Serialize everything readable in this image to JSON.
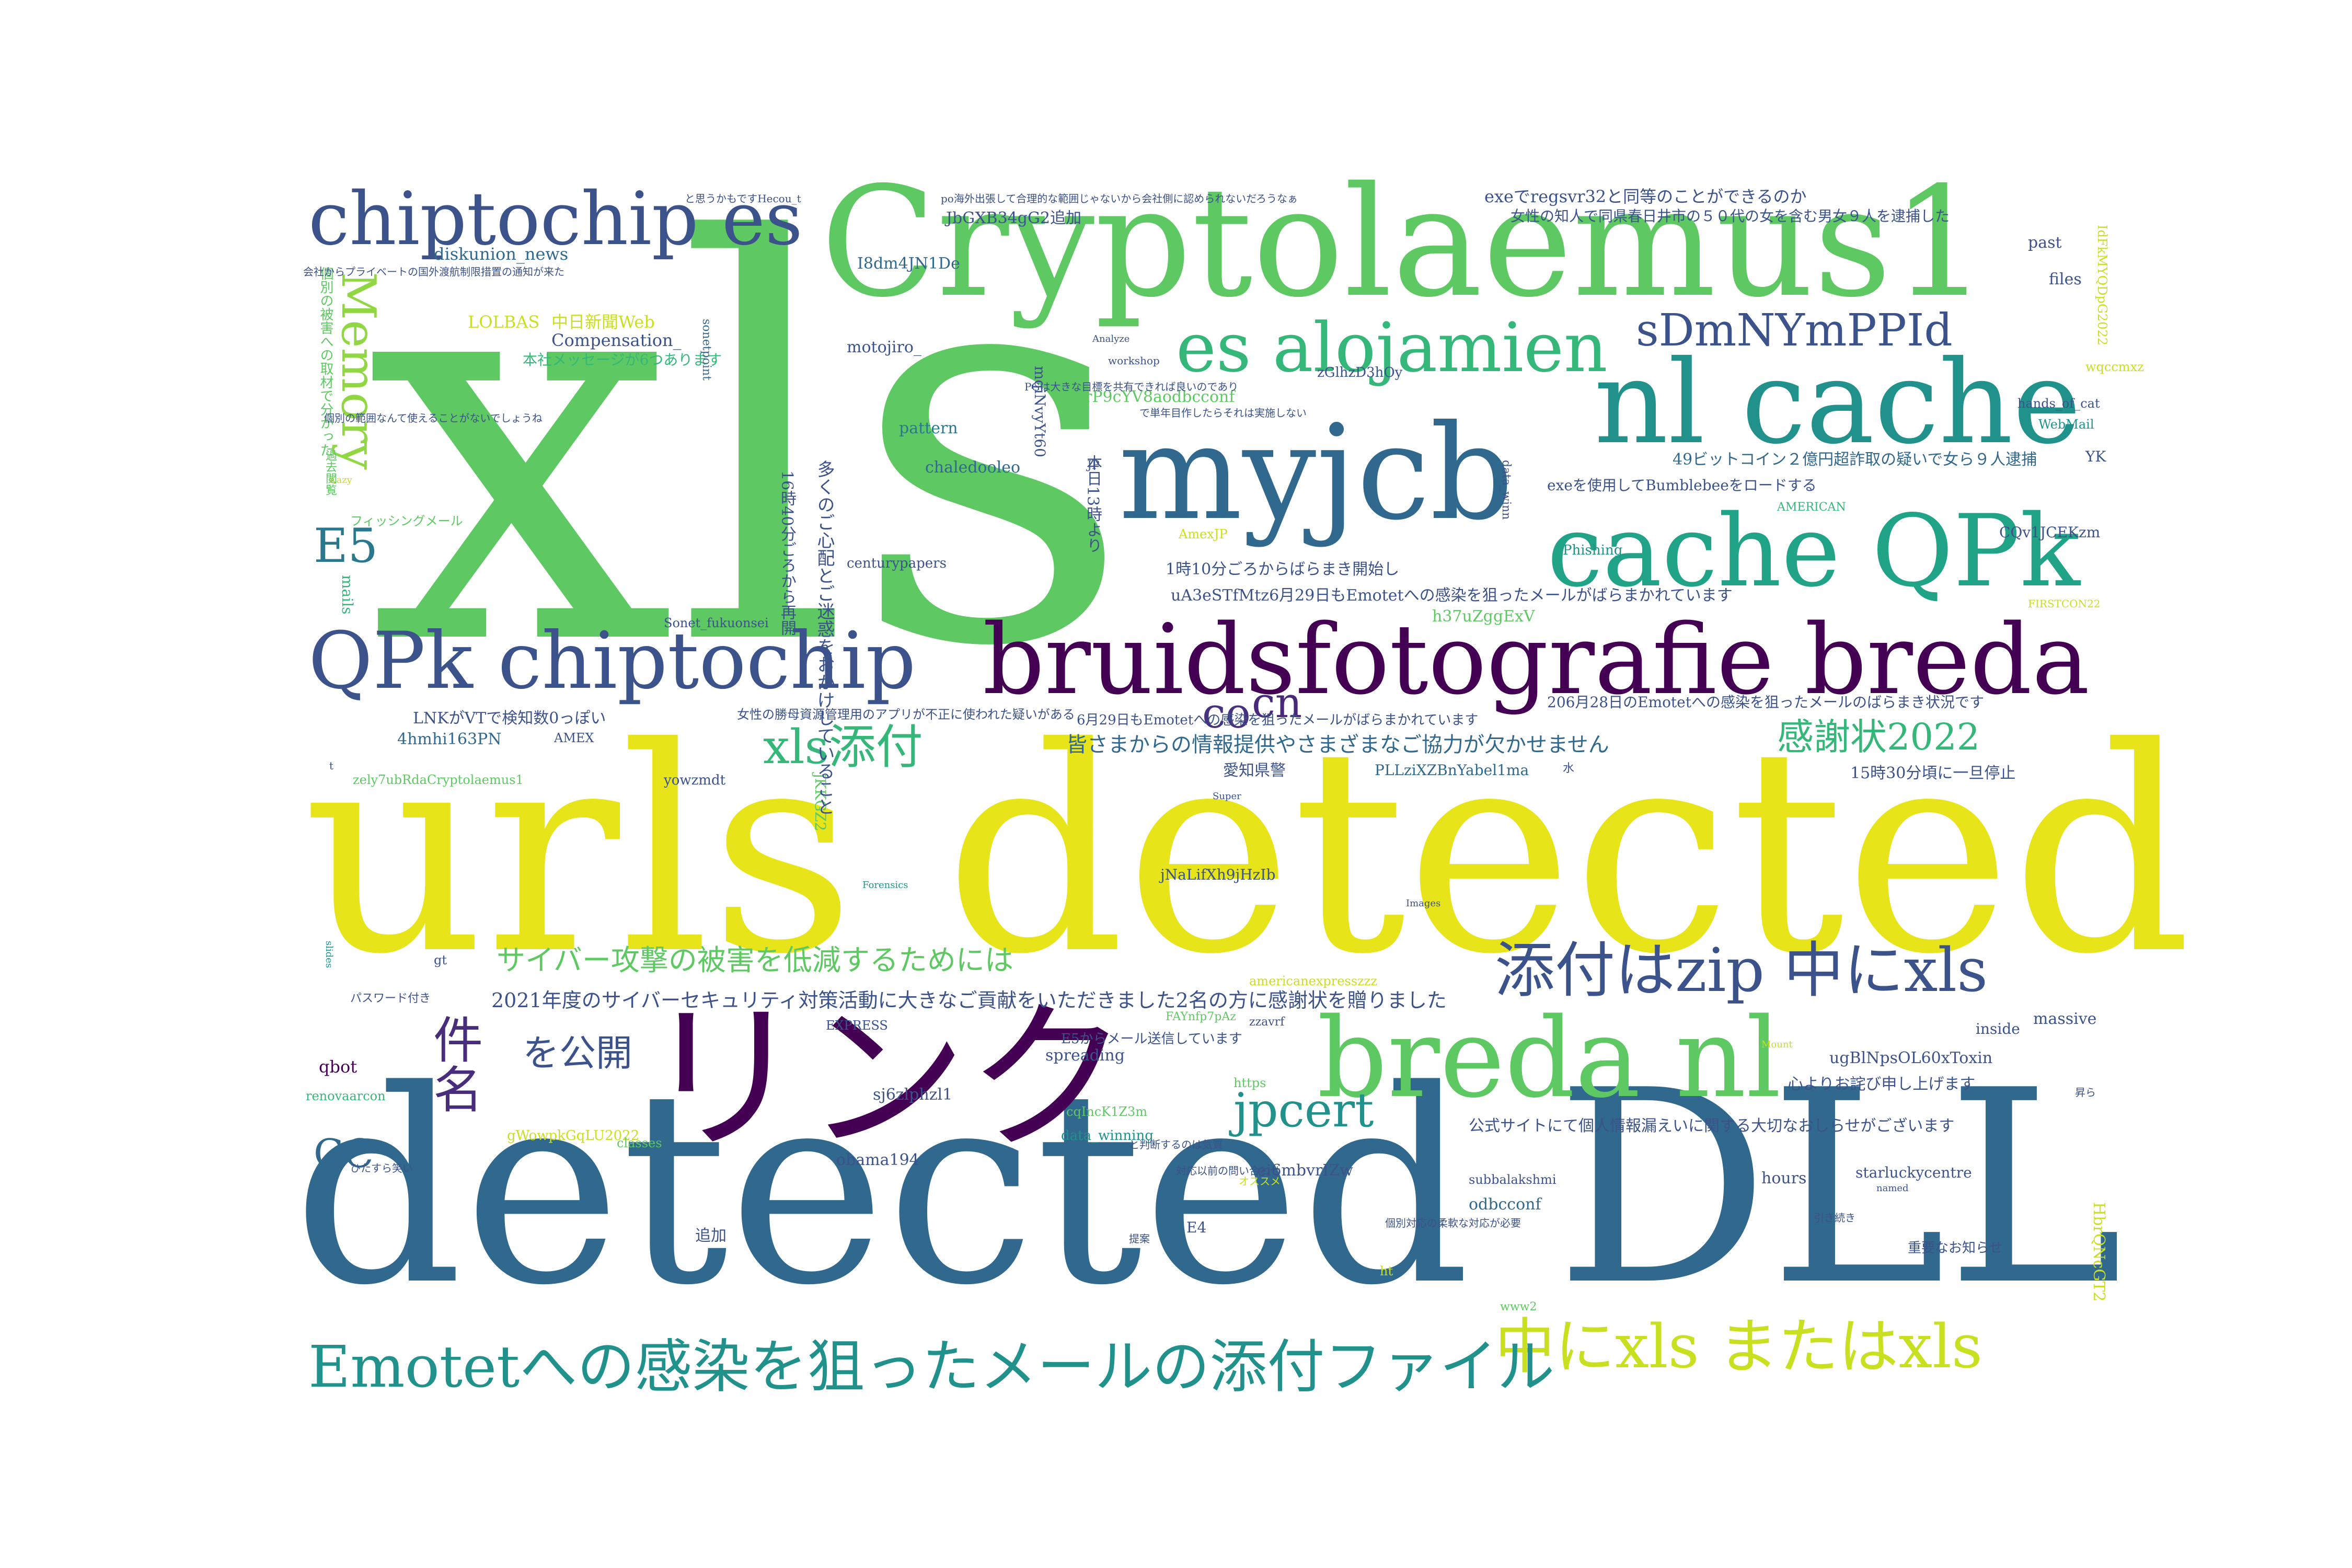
{
  "words": [
    {
      "text": "xls",
      "color": "#5ec962"
    },
    {
      "text": "urls detected",
      "color": "#e7e419"
    },
    {
      "text": "detected DLL",
      "color": "#31688e"
    },
    {
      "text": "Cryptolaemus1",
      "color": "#5ec962"
    },
    {
      "text": "bruidsfotografie breda",
      "color": "#440154"
    },
    {
      "text": "myjcb",
      "color": "#31688e"
    },
    {
      "text": "nl cache",
      "color": "#21918c"
    },
    {
      "text": "cache QPk",
      "color": "#20a386"
    },
    {
      "text": "QPk chiptochip",
      "color": "#3b528b"
    },
    {
      "text": "chiptochip es",
      "color": "#3b528b"
    },
    {
      "text": "es alojamien",
      "color": "#35b779"
    },
    {
      "text": "sDmNYmPPId",
      "color": "#3b528b"
    },
    {
      "text": "リンク",
      "color": "#440154"
    },
    {
      "text": "breda nl",
      "color": "#5ec962"
    },
    {
      "text": "添付はzip 中にxls",
      "color": "#3b528b"
    },
    {
      "text": "中にxls またはxls",
      "color": "#c8e020"
    },
    {
      "text": "Emotetへの感染を狙ったメールの添付ファイル",
      "color": "#21918c"
    },
    {
      "text": "Memory",
      "color": "#90d743"
    },
    {
      "text": "E5",
      "color": "#2a788e"
    },
    {
      "text": "co",
      "color": "#46327e"
    },
    {
      "text": "cn",
      "color": "#482878"
    },
    {
      "text": "xls添付",
      "color": "#35b779"
    },
    {
      "text": "感謝状2022",
      "color": "#35b779"
    },
    {
      "text": "jpcert",
      "color": "#21918c"
    },
    {
      "text": "件名",
      "color": "#472d7b"
    },
    {
      "text": "を公開",
      "color": "#3b528b"
    },
    {
      "text": "CC",
      "color": "#31688e"
    },
    {
      "text": "サイバー攻撃の被害を低減するためには",
      "color": "#5ec962"
    },
    {
      "text": "2021年度のサイバーセキュリティ対策活動に大きなご貢献をいただきました2名の方に感謝状を贈りました",
      "color": "#3b528b"
    },
    {
      "text": "皆さまからの情報提供やさまざまなご協力が欠かせません",
      "color": "#31688e"
    },
    {
      "text": "exeでregsvr32と同等のことができるのか",
      "color": "#3b528b"
    },
    {
      "text": "女性の知人で同県春日井市の５０代の女を含む男女９人を逮捕した",
      "color": "#3b528b"
    },
    {
      "text": "diskunion_news",
      "color": "#31688e"
    },
    {
      "text": "LOLBAS",
      "color": "#c8e020"
    },
    {
      "text": "中日新聞Web",
      "color": "#c8e020"
    },
    {
      "text": "Compensation_",
      "color": "#3b528b"
    },
    {
      "text": "本社メッセージが6つあります",
      "color": "#35b779"
    },
    {
      "text": "JbGXB34gG2追加",
      "color": "#3b528b"
    },
    {
      "text": "I8dm4JN1De",
      "color": "#31688e"
    },
    {
      "text": "zgrP9cYV8aodbcconf",
      "color": "#5ec962"
    },
    {
      "text": "pattern",
      "color": "#2a788e"
    },
    {
      "text": "chaledooleo",
      "color": "#31688e"
    },
    {
      "text": "49ビットコイン２億円超詐取の疑いで女ら９人逮捕",
      "color": "#31688e"
    },
    {
      "text": "exeを使用してBumblebeeをロードする",
      "color": "#3b528b"
    },
    {
      "text": "1時10分ごろからばらまき開始し",
      "color": "#3b528b"
    },
    {
      "text": "uA3eSTfMtz6月29日もEmotetへの感染を狙ったメールがばらまかれています",
      "color": "#3b528b"
    },
    {
      "text": "206月28日のEmotetへの感染を狙ったメールのばらまき状況です",
      "color": "#3b528b"
    },
    {
      "text": "6月29日もEmotetへの感染を狙ったメールがばらまかれています",
      "color": "#3b528b"
    },
    {
      "text": "LNKがVTで検知数0っぽい",
      "color": "#3b528b"
    },
    {
      "text": "4hmhi163PN",
      "color": "#31688e"
    },
    {
      "text": "女性の勝母資源管理用のアプリが不正に使われた疑いがある",
      "color": "#3b528b"
    },
    {
      "text": "15時30分頃に一旦停止",
      "color": "#3b528b"
    },
    {
      "text": "愛知県警",
      "color": "#3b528b"
    },
    {
      "text": "PLLziXZBnYabel1ma",
      "color": "#31688e"
    },
    {
      "text": "jNaLifXh9jHzIb",
      "color": "#3b528b"
    },
    {
      "text": "zely7ubRdaCryptolaemus1",
      "color": "#5ec962"
    },
    {
      "text": "yowzmdt",
      "color": "#3b528b"
    },
    {
      "text": "AMEX",
      "color": "#3b528b"
    },
    {
      "text": "Sonet_fukuonsei",
      "color": "#3b528b"
    },
    {
      "text": "h37uZggExV",
      "color": "#5ec962"
    },
    {
      "text": "centurypapers",
      "color": "#3b528b"
    },
    {
      "text": "AmexJP",
      "color": "#c8e020"
    },
    {
      "text": "AMERICAN",
      "color": "#35b779"
    },
    {
      "text": "Phishing",
      "color": "#21918c"
    },
    {
      "text": "CQv1JCEKzm",
      "color": "#3b528b"
    },
    {
      "text": "YK",
      "color": "#3b528b"
    },
    {
      "text": "hands_of_cat",
      "color": "#3b528b"
    },
    {
      "text": "wqccmxz",
      "color": "#c8e020"
    },
    {
      "text": "past",
      "color": "#3b528b"
    },
    {
      "text": "files",
      "color": "#3b528b"
    },
    {
      "text": "WebMail",
      "color": "#21918c"
    },
    {
      "text": "sonetpoint",
      "color": "#31688e"
    },
    {
      "text": "mqiNvyYt60",
      "color": "#3b528b"
    },
    {
      "text": "motojiro_",
      "color": "#3b528b"
    },
    {
      "text": "zGlhzD3hOy",
      "color": "#3b528b"
    },
    {
      "text": "ugBlNpsOL60xToxin",
      "color": "#3b528b"
    },
    {
      "text": "心よりお詫び申し上げます",
      "color": "#3b528b"
    },
    {
      "text": "公式サイトにて個人情報漏えいに関する大切なおしらせがございます",
      "color": "#3b528b"
    },
    {
      "text": "spreading",
      "color": "#3b528b"
    },
    {
      "text": "E5からメール送信しています",
      "color": "#3b528b"
    },
    {
      "text": "massive",
      "color": "#3b528b"
    },
    {
      "text": "inside",
      "color": "#3b528b"
    },
    {
      "text": "sj6zlphzl1",
      "color": "#3b528b"
    },
    {
      "text": "cqIncK1Z3m",
      "color": "#5ec962"
    },
    {
      "text": "data_winning",
      "color": "#21918c"
    },
    {
      "text": "obama194",
      "color": "#3b528b"
    },
    {
      "text": "ei6mbvrIZw",
      "color": "#3b528b"
    },
    {
      "text": "subbalakshmi",
      "color": "#3b528b"
    },
    {
      "text": "odbcconf",
      "color": "#31688e"
    },
    {
      "text": "hours",
      "color": "#3b528b"
    },
    {
      "text": "E4",
      "color": "#3b528b"
    },
    {
      "text": "追加",
      "color": "#3b528b"
    },
    {
      "text": "重要なお知らせ",
      "color": "#3b528b"
    },
    {
      "text": "www2",
      "color": "#5ec962"
    },
    {
      "text": "ht",
      "color": "#c8e020"
    },
    {
      "text": "qbot",
      "color": "#440154"
    },
    {
      "text": "renovaarcon",
      "color": "#35b779"
    },
    {
      "text": "gWowpkGqLU2022",
      "color": "#c8e020"
    },
    {
      "text": "EXPRESS",
      "color": "#3b528b"
    },
    {
      "text": "americanexpresszzz",
      "color": "#c8e020"
    },
    {
      "text": "https",
      "color": "#5ec962"
    },
    {
      "text": "パスワード付き",
      "color": "#3b528b"
    },
    {
      "text": "zzavrf",
      "color": "#3b528b"
    },
    {
      "text": "FAYnfp7pAz",
      "color": "#5ec962"
    },
    {
      "text": "classes",
      "color": "#5ec962"
    },
    {
      "text": "gt",
      "color": "#3b528b"
    },
    {
      "text": "ひたすら笑い",
      "color": "#3b528b"
    },
    {
      "text": "Mount",
      "color": "#c8e020"
    },
    {
      "text": "Images",
      "color": "#3b528b"
    },
    {
      "text": "Forensics",
      "color": "#21918c"
    },
    {
      "text": "slides",
      "color": "#21918c"
    },
    {
      "text": "Super",
      "color": "#3b528b"
    },
    {
      "text": "t",
      "color": "#3b528b"
    },
    {
      "text": "水",
      "color": "#3b528b"
    },
    {
      "text": "jKKGZ2",
      "color": "#5ec962"
    },
    {
      "text": "mails",
      "color": "#35b779"
    },
    {
      "text": "Kazy",
      "color": "#c8e020"
    },
    {
      "text": "フィッシングメール",
      "color": "#5ec962"
    },
    {
      "text": "Analyze",
      "color": "#3b528b"
    },
    {
      "text": "workshop",
      "color": "#3b528b"
    },
    {
      "text": "starluckycentre",
      "color": "#3b528b"
    },
    {
      "text": "named",
      "color": "#3b528b"
    },
    {
      "text": "HbrQNcGT2",
      "color": "#c8e020"
    },
    {
      "text": "FIRSTCON22",
      "color": "#c8e020"
    },
    {
      "text": "IdFkMYQDpG2022",
      "color": "#c8e020"
    },
    {
      "text": "data_winn",
      "color": "#3b528b"
    },
    {
      "text": "多くのご心配とご迷惑をおかけしていること",
      "color": "#3b528b"
    },
    {
      "text": "16時40分ごろから再開",
      "color": "#3b528b"
    },
    {
      "text": "本日13時より",
      "color": "#3b528b"
    },
    {
      "text": "個別の被害への取材で分かった",
      "color": "#5ec962"
    },
    {
      "text": "会社からプライベートの国外渡航制限措置の通知が来た",
      "color": "#3b528b"
    },
    {
      "text": "個別の範囲なんて使えることがないでしょうね",
      "color": "#3b528b"
    },
    {
      "text": "過去閲覧",
      "color": "#5ec962"
    },
    {
      "text": "と思うかもですHecou_t",
      "color": "#3b528b"
    },
    {
      "text": "po海外出張して合理的な範囲じゃないから会社側に認められないだろうなぁ",
      "color": "#3b528b"
    },
    {
      "text": "PGは大きな目標を共有できれば良いのであり",
      "color": "#3b528b"
    },
    {
      "text": "で単年目作したらそれは実施しない",
      "color": "#3b528b"
    },
    {
      "text": "JP",
      "color": "#3b528b"
    },
    {
      "text": "対応以前の問い合わせ",
      "color": "#3b528b"
    },
    {
      "text": "と判断するのは気質",
      "color": "#3b528b"
    },
    {
      "text": "引き続き",
      "color": "#3b528b"
    },
    {
      "text": "昇ら",
      "color": "#3b528b"
    },
    {
      "text": "オススメ",
      "color": "#c8e020"
    },
    {
      "text": "提案",
      "color": "#3b528b"
    },
    {
      "text": "個別対応の柔軟な対応が必要",
      "color": "#3b528b"
    }
  ]
}
